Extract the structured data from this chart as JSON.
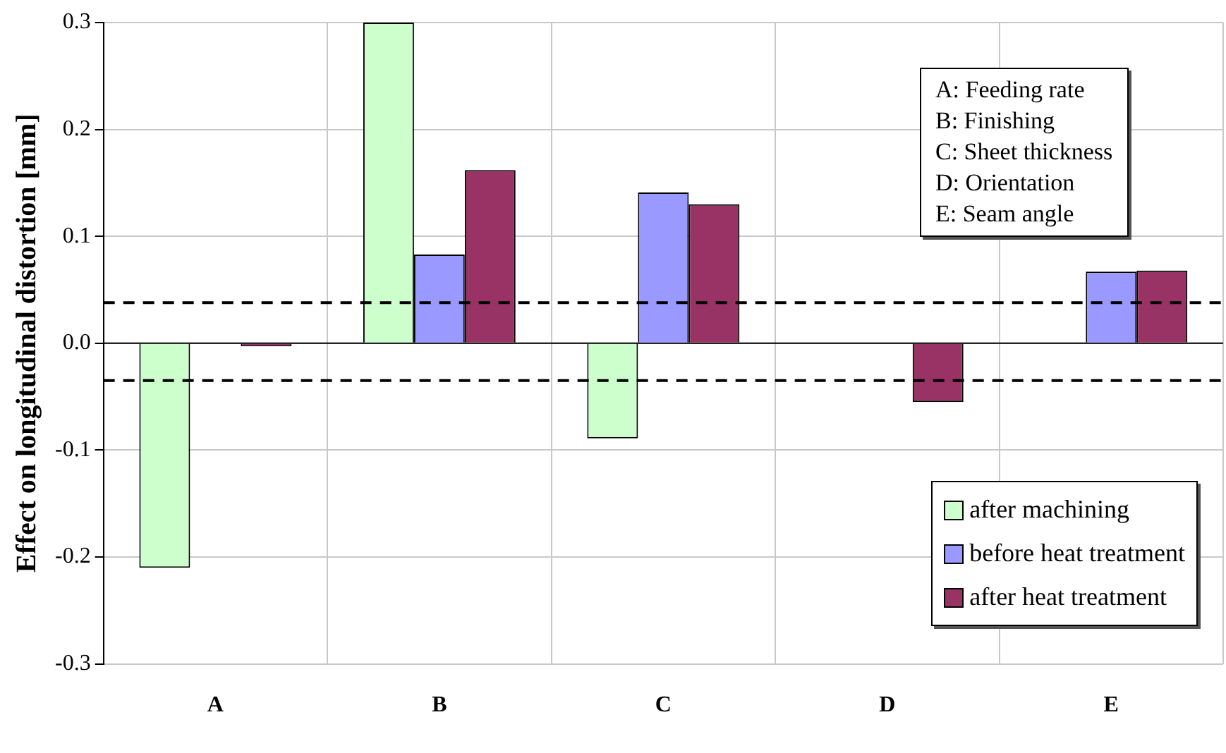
{
  "chart_data": {
    "type": "bar",
    "ylabel": "Effect on longitudinal distortion [mm]",
    "categories": [
      "A",
      "B",
      "C",
      "D",
      "E"
    ],
    "series": [
      {
        "name": "after machining",
        "color": "#ccffcc",
        "values": [
          -0.21,
          0.3,
          -0.089,
          0,
          0
        ]
      },
      {
        "name": "before heat treatment",
        "color": "#9999ff",
        "values": [
          0,
          0.083,
          0.141,
          0,
          0.067
        ]
      },
      {
        "name": "after heat treatment",
        "color": "#993366",
        "values": [
          -0.003,
          0.162,
          0.13,
          -0.055,
          0.068
        ]
      }
    ],
    "ylim": [
      -0.3,
      0.3
    ],
    "yticks": [
      {
        "value": -0.3,
        "label": "-0.3"
      },
      {
        "value": -0.2,
        "label": "-0.2"
      },
      {
        "value": -0.1,
        "label": "-0.1"
      },
      {
        "value": 0,
        "label": "0.0"
      },
      {
        "value": 0.1,
        "label": "0.1"
      },
      {
        "value": 0.2,
        "label": "0.2"
      },
      {
        "value": 0.3,
        "label": "0.3"
      }
    ],
    "ref_lines": [
      {
        "axis": "y",
        "value": 0.038,
        "color": "#000000",
        "line_style": "dashed"
      },
      {
        "axis": "y",
        "value": -0.035,
        "color": "#000000",
        "line_style": "dashed"
      }
    ],
    "annotations": [
      "A: Feeding rate",
      "B: Finishing",
      "C: Sheet thickness",
      "D: Orientation",
      "E: Seam angle"
    ],
    "grid": true,
    "legend": "bottom right"
  }
}
